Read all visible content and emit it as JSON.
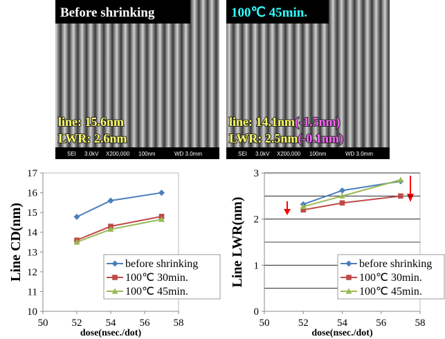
{
  "panels": [
    {
      "title": "Before shrinking",
      "line_text": "line: 15.6nm",
      "lwr_text": "LWR: 2.6nm",
      "info": [
        "SEI",
        "3.0kV",
        "X200,000",
        "100nm",
        "WD 3.0mm"
      ]
    },
    {
      "title": "100℃ 45min.",
      "line_text": "line: 14.1nm",
      "line_delta": "(-1.5nm)",
      "lwr_text": "LWR: 2.5nm",
      "lwr_delta": "(-0.1nm)",
      "info": [
        "SEI",
        "3.0kV",
        "X200,000",
        "100nm",
        "WD 3.0mm"
      ]
    }
  ],
  "chart_data": [
    {
      "type": "line",
      "y_label": "Line CD(nm)",
      "x_label": "dose(nsec./dot)",
      "xlim": [
        50,
        58
      ],
      "xticks": [
        50,
        52,
        54,
        56,
        58
      ],
      "ylim": [
        10,
        17
      ],
      "yticks": [
        10,
        11,
        12,
        13,
        14,
        15,
        16,
        17
      ],
      "legend": "lower right",
      "x": [
        52,
        54,
        57
      ],
      "series": [
        {
          "name": "before shrinking",
          "color": "#4a7ebb",
          "marker": "diamond",
          "values": [
            14.78,
            15.6,
            16.0
          ]
        },
        {
          "name": "100℃ 30min.",
          "color": "#be4b48",
          "marker": "square",
          "values": [
            13.6,
            14.3,
            14.8
          ]
        },
        {
          "name": "100℃ 45min.",
          "color": "#98b954",
          "marker": "triangle",
          "values": [
            13.5,
            14.15,
            14.65
          ]
        }
      ]
    },
    {
      "type": "line",
      "y_label": "Line LWR(nm)",
      "x_label": "dose(nsec./dot)",
      "xlim": [
        50,
        58
      ],
      "xticks": [
        50,
        52,
        54,
        56,
        58
      ],
      "ylim": [
        0,
        3
      ],
      "yticks": [
        0,
        1,
        2,
        3
      ],
      "ygrid": [
        0.5,
        1,
        1.5,
        2,
        2.5,
        3
      ],
      "legend": "lower right",
      "x": [
        52,
        54,
        57
      ],
      "series": [
        {
          "name": "before shrinking",
          "color": "#4a7ebb",
          "marker": "diamond",
          "values": [
            2.32,
            2.62,
            2.82
          ]
        },
        {
          "name": "100℃ 30min.",
          "color": "#be4b48",
          "marker": "square",
          "values": [
            2.2,
            2.35,
            2.5
          ]
        },
        {
          "name": "100℃ 45min.",
          "color": "#98b954",
          "marker": "triangle",
          "values": [
            2.27,
            2.5,
            2.85
          ]
        }
      ]
    }
  ]
}
